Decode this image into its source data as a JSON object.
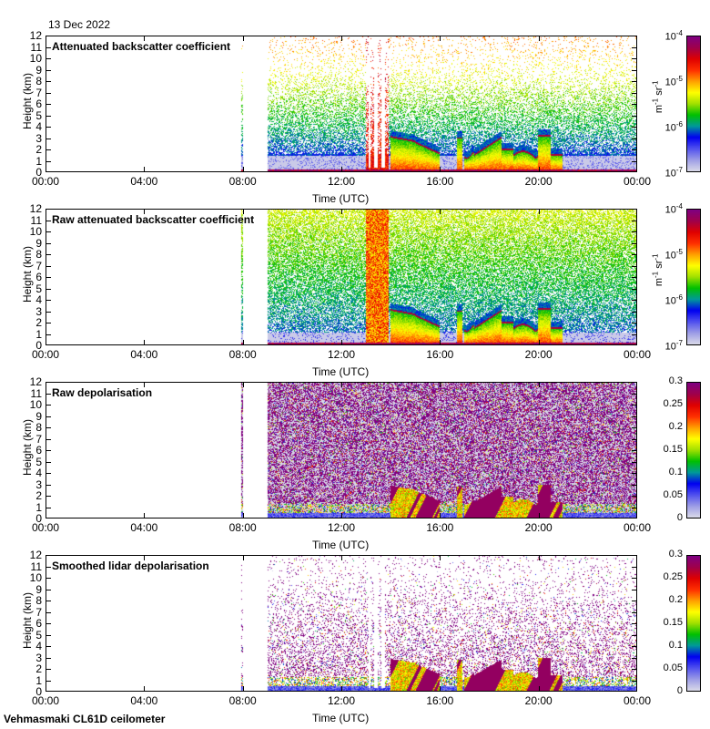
{
  "date_label": "13 Dec 2022",
  "footer": "Vehmasmaki CL61D ceilometer",
  "colors": {
    "colormap": [
      "#d8d8e8",
      "#9c9ce6",
      "#5050ee",
      "#0000f0",
      "#009999",
      "#00c000",
      "#a0e000",
      "#ffff00",
      "#ffa000",
      "#ff3000",
      "#e00000",
      "#a0004a",
      "#800080"
    ],
    "background": "#ffffff",
    "frame": "#000000"
  },
  "chart_data": [
    {
      "type": "heatmap",
      "title": "Attenuated backscatter coefficient",
      "xlabel": "Time (UTC)",
      "ylabel": "Height (km)",
      "x_ticks": [
        "00:00",
        "04:00",
        "08:00",
        "12:00",
        "16:00",
        "20:00",
        "00:00"
      ],
      "xlim_hours": [
        0,
        24
      ],
      "y_ticks": [
        "0",
        "1",
        "2",
        "3",
        "4",
        "5",
        "6",
        "7",
        "8",
        "9",
        "10",
        "11",
        "12"
      ],
      "ylim": [
        0,
        12
      ],
      "colorbar": {
        "scale": "log",
        "ticks": [
          {
            "base": "10",
            "exp": "-7"
          },
          {
            "base": "10",
            "exp": "-6"
          },
          {
            "base": "10",
            "exp": "-5"
          },
          {
            "base": "10",
            "exp": "-4"
          }
        ],
        "range": [
          1e-07,
          0.0001
        ],
        "unit_main": "m",
        "unit_exp1": "-1",
        "unit_mid": " sr",
        "unit_exp2": "-1"
      },
      "data_coverage_hours": [
        [
          7.9,
          8.0
        ],
        [
          9.0,
          24.0
        ]
      ],
      "mode": "att"
    },
    {
      "type": "heatmap",
      "title": "Raw attenuated backscatter coefficient",
      "xlabel": "Time (UTC)",
      "ylabel": "Height (km)",
      "x_ticks": [
        "00:00",
        "04:00",
        "08:00",
        "12:00",
        "16:00",
        "20:00",
        "00:00"
      ],
      "xlim_hours": [
        0,
        24
      ],
      "y_ticks": [
        "0",
        "1",
        "2",
        "3",
        "4",
        "5",
        "6",
        "7",
        "8",
        "9",
        "10",
        "11",
        "12"
      ],
      "ylim": [
        0,
        12
      ],
      "colorbar": {
        "scale": "log",
        "ticks": [
          {
            "base": "10",
            "exp": "-7"
          },
          {
            "base": "10",
            "exp": "-6"
          },
          {
            "base": "10",
            "exp": "-5"
          },
          {
            "base": "10",
            "exp": "-4"
          }
        ],
        "range": [
          1e-07,
          0.0001
        ],
        "unit_main": "m",
        "unit_exp1": "-1",
        "unit_mid": " sr",
        "unit_exp2": "-1"
      },
      "data_coverage_hours": [
        [
          7.9,
          8.0
        ],
        [
          9.0,
          24.0
        ]
      ],
      "mode": "raw"
    },
    {
      "type": "heatmap",
      "title": "Raw depolarisation",
      "xlabel": "Time (UTC)",
      "ylabel": "Height (km)",
      "x_ticks": [
        "00:00",
        "04:00",
        "08:00",
        "12:00",
        "16:00",
        "20:00",
        "00:00"
      ],
      "xlim_hours": [
        0,
        24
      ],
      "y_ticks": [
        "0",
        "1",
        "2",
        "3",
        "4",
        "5",
        "6",
        "7",
        "8",
        "9",
        "10",
        "11",
        "12"
      ],
      "ylim": [
        0,
        12
      ],
      "colorbar": {
        "scale": "linear",
        "ticks": [
          {
            "base": "0"
          },
          {
            "base": "0.05"
          },
          {
            "base": "0.1"
          },
          {
            "base": "0.15"
          },
          {
            "base": "0.2"
          },
          {
            "base": "0.25"
          },
          {
            "base": "0.3"
          }
        ],
        "range": [
          0,
          0.3
        ]
      },
      "data_coverage_hours": [
        [
          7.9,
          8.0
        ],
        [
          9.0,
          24.0
        ]
      ],
      "mode": "rawdep"
    },
    {
      "type": "heatmap",
      "title": "Smoothed lidar depolarisation",
      "xlabel": "Time (UTC)",
      "ylabel": "Height (km)",
      "x_ticks": [
        "00:00",
        "04:00",
        "08:00",
        "12:00",
        "16:00",
        "20:00",
        "00:00"
      ],
      "xlim_hours": [
        0,
        24
      ],
      "y_ticks": [
        "0",
        "1",
        "2",
        "3",
        "4",
        "5",
        "6",
        "7",
        "8",
        "9",
        "10",
        "11",
        "12"
      ],
      "ylim": [
        0,
        12
      ],
      "colorbar": {
        "scale": "linear",
        "ticks": [
          {
            "base": "0"
          },
          {
            "base": "0.05"
          },
          {
            "base": "0.1"
          },
          {
            "base": "0.15"
          },
          {
            "base": "0.2"
          },
          {
            "base": "0.25"
          },
          {
            "base": "0.3"
          }
        ],
        "range": [
          0,
          0.3
        ]
      },
      "data_coverage_hours": [
        [
          7.9,
          8.0
        ],
        [
          9.0,
          24.0
        ]
      ],
      "mode": "smdep"
    }
  ]
}
